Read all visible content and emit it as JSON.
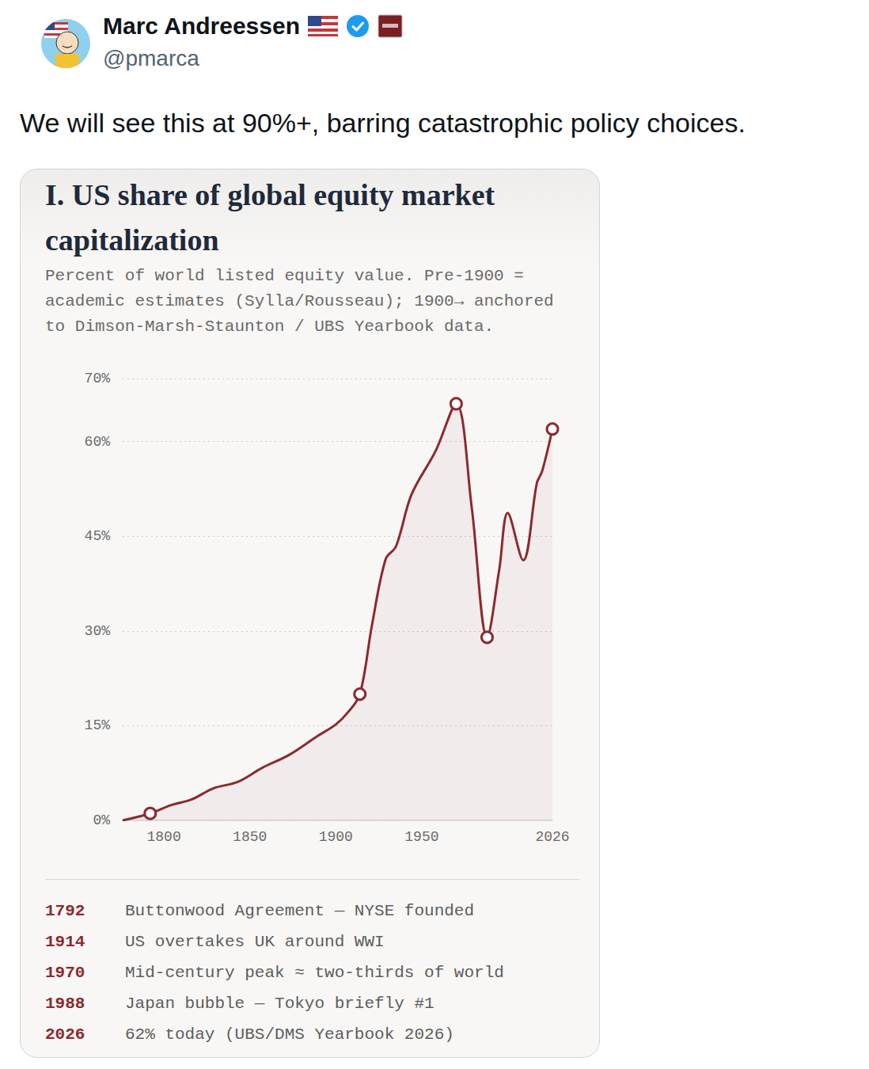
{
  "post": {
    "author": "Marc Andreessen",
    "handle": "@pmarca",
    "text": "We will see this at 90%+, barring catastrophic policy choices."
  },
  "chart_data": {
    "type": "line",
    "title": "I. US share of global equity market capitalization",
    "subtitle": "Percent of world listed equity value. Pre-1900 = academic estimates (Sylla/Rousseau); 1900→ anchored to Dimson-Marsh-Staunton / UBS Yearbook data.",
    "x": [
      1776,
      1792,
      1804,
      1816,
      1829,
      1843,
      1857,
      1873,
      1889,
      1900,
      1907,
      1914,
      1921,
      1929,
      1935,
      1944,
      1958,
      1970,
      1979,
      1988,
      1995,
      2000,
      2009,
      2017,
      2020,
      2026
    ],
    "values": [
      0,
      1.1,
      2.4,
      3.3,
      5.1,
      6.1,
      8.3,
      10.4,
      13.3,
      15.2,
      17.1,
      20.0,
      30.9,
      41.4,
      43.4,
      51.6,
      58.5,
      66.0,
      49.7,
      29.0,
      39.6,
      48.7,
      41.2,
      53.5,
      55.3,
      62.0
    ],
    "color": "#8b2a2f",
    "marker": "circle",
    "xlim": [
      1776,
      2026
    ],
    "xticks": [
      1800,
      1850,
      1900,
      1950,
      2026
    ],
    "ylim": [
      0,
      70
    ],
    "yticks": [
      {
        "value": 0,
        "label": "0%"
      },
      {
        "value": 15,
        "label": "15%"
      },
      {
        "value": 30,
        "label": "30%"
      },
      {
        "value": 45,
        "label": "45%"
      },
      {
        "value": 60,
        "label": "60%"
      },
      {
        "value": 70,
        "label": "70%"
      }
    ],
    "grid": true,
    "annotations": [
      {
        "year": 1792,
        "text": "Buttonwood Agreement — NYSE founded"
      },
      {
        "year": 1914,
        "text": "US overtakes UK around WWI"
      },
      {
        "year": 1970,
        "text": "Mid-century peak ≈ two-thirds of world"
      },
      {
        "year": 1988,
        "text": "Japan bubble — Tokyo briefly #1"
      },
      {
        "year": 2026,
        "text": "62% today (UBS/DMS Yearbook 2026)"
      }
    ]
  }
}
